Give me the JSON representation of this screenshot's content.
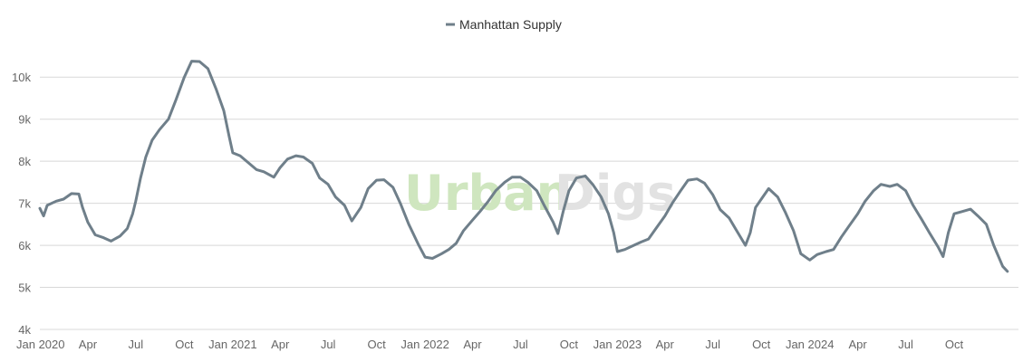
{
  "chart_data": {
    "type": "line",
    "legend": {
      "position": "top-center"
    },
    "watermark": {
      "part1": "Urban",
      "part2": "Digs",
      "color1": "#cfe6bf",
      "color2": "#e2e2e2"
    },
    "grid": true,
    "ylim": [
      4000,
      10500
    ],
    "y_ticks": [
      {
        "value": 4000,
        "label": "4k"
      },
      {
        "value": 5000,
        "label": "5k"
      },
      {
        "value": 6000,
        "label": "6k"
      },
      {
        "value": 7000,
        "label": "7k"
      },
      {
        "value": 8000,
        "label": "8k"
      },
      {
        "value": 9000,
        "label": "9k"
      },
      {
        "value": 10000,
        "label": "10k"
      }
    ],
    "x_range": [
      "2020-01-01",
      "2025-01-31"
    ],
    "x_ticks": [
      {
        "date": "2020-01-01",
        "label": "Jan 2020"
      },
      {
        "date": "2020-04-01",
        "label": "Apr"
      },
      {
        "date": "2020-07-01",
        "label": "Jul"
      },
      {
        "date": "2020-10-01",
        "label": "Oct"
      },
      {
        "date": "2021-01-01",
        "label": "Jan 2021"
      },
      {
        "date": "2021-04-01",
        "label": "Apr"
      },
      {
        "date": "2021-07-01",
        "label": "Jul"
      },
      {
        "date": "2021-10-01",
        "label": "Oct"
      },
      {
        "date": "2022-01-01",
        "label": "Jan 2022"
      },
      {
        "date": "2022-04-01",
        "label": "Apr"
      },
      {
        "date": "2022-07-01",
        "label": "Jul"
      },
      {
        "date": "2022-10-01",
        "label": "Oct"
      },
      {
        "date": "2023-01-01",
        "label": "Jan 2023"
      },
      {
        "date": "2023-04-01",
        "label": "Apr"
      },
      {
        "date": "2023-07-01",
        "label": "Jul"
      },
      {
        "date": "2023-10-01",
        "label": "Oct"
      },
      {
        "date": "2024-01-01",
        "label": "Jan 2024"
      },
      {
        "date": "2024-04-01",
        "label": "Apr"
      },
      {
        "date": "2024-07-01",
        "label": "Jul"
      },
      {
        "date": "2024-10-01",
        "label": "Oct"
      }
    ],
    "series": [
      {
        "name": "Manhattan Supply",
        "color": "#6f7f8a",
        "points": [
          [
            "2020-01-01",
            6880
          ],
          [
            "2020-01-08",
            6700
          ],
          [
            "2020-01-15",
            6950
          ],
          [
            "2020-02-01",
            7050
          ],
          [
            "2020-02-15",
            7100
          ],
          [
            "2020-03-01",
            7230
          ],
          [
            "2020-03-15",
            7220
          ],
          [
            "2020-03-22",
            6900
          ],
          [
            "2020-04-01",
            6550
          ],
          [
            "2020-04-15",
            6250
          ],
          [
            "2020-05-01",
            6180
          ],
          [
            "2020-05-15",
            6100
          ],
          [
            "2020-06-01",
            6220
          ],
          [
            "2020-06-15",
            6400
          ],
          [
            "2020-06-25",
            6750
          ],
          [
            "2020-07-01",
            7050
          ],
          [
            "2020-07-10",
            7600
          ],
          [
            "2020-07-20",
            8100
          ],
          [
            "2020-08-01",
            8500
          ],
          [
            "2020-08-15",
            8750
          ],
          [
            "2020-09-01",
            9000
          ],
          [
            "2020-09-15",
            9450
          ],
          [
            "2020-10-01",
            10000
          ],
          [
            "2020-10-15",
            10380
          ],
          [
            "2020-10-30",
            10370
          ],
          [
            "2020-11-15",
            10200
          ],
          [
            "2020-12-01",
            9700
          ],
          [
            "2020-12-15",
            9200
          ],
          [
            "2020-12-25",
            8600
          ],
          [
            "2021-01-01",
            8200
          ],
          [
            "2021-01-15",
            8130
          ],
          [
            "2021-02-01",
            7950
          ],
          [
            "2021-02-15",
            7800
          ],
          [
            "2021-03-01",
            7750
          ],
          [
            "2021-03-20",
            7620
          ],
          [
            "2021-04-01",
            7850
          ],
          [
            "2021-04-15",
            8050
          ],
          [
            "2021-05-01",
            8130
          ],
          [
            "2021-05-15",
            8100
          ],
          [
            "2021-06-01",
            7950
          ],
          [
            "2021-06-15",
            7600
          ],
          [
            "2021-07-01",
            7450
          ],
          [
            "2021-07-15",
            7150
          ],
          [
            "2021-08-01",
            6950
          ],
          [
            "2021-08-15",
            6580
          ],
          [
            "2021-09-01",
            6900
          ],
          [
            "2021-09-15",
            7350
          ],
          [
            "2021-10-01",
            7550
          ],
          [
            "2021-10-15",
            7560
          ],
          [
            "2021-11-01",
            7380
          ],
          [
            "2021-11-15",
            7000
          ],
          [
            "2021-12-01",
            6500
          ],
          [
            "2021-12-20",
            6000
          ],
          [
            "2022-01-01",
            5720
          ],
          [
            "2022-01-15",
            5690
          ],
          [
            "2022-02-01",
            5800
          ],
          [
            "2022-02-15",
            5900
          ],
          [
            "2022-03-01",
            6050
          ],
          [
            "2022-03-15",
            6350
          ],
          [
            "2022-04-01",
            6600
          ],
          [
            "2022-04-15",
            6800
          ],
          [
            "2022-05-01",
            7050
          ],
          [
            "2022-05-15",
            7300
          ],
          [
            "2022-06-01",
            7500
          ],
          [
            "2022-06-15",
            7620
          ],
          [
            "2022-07-01",
            7620
          ],
          [
            "2022-07-15",
            7500
          ],
          [
            "2022-08-01",
            7300
          ],
          [
            "2022-08-15",
            6950
          ],
          [
            "2022-09-01",
            6550
          ],
          [
            "2022-09-10",
            6280
          ],
          [
            "2022-09-20",
            6800
          ],
          [
            "2022-10-01",
            7300
          ],
          [
            "2022-10-15",
            7600
          ],
          [
            "2022-11-01",
            7650
          ],
          [
            "2022-11-15",
            7450
          ],
          [
            "2022-12-01",
            7150
          ],
          [
            "2022-12-15",
            6750
          ],
          [
            "2022-12-25",
            6300
          ],
          [
            "2023-01-01",
            5850
          ],
          [
            "2023-01-15",
            5900
          ],
          [
            "2023-02-01",
            6000
          ],
          [
            "2023-02-15",
            6080
          ],
          [
            "2023-03-01",
            6150
          ],
          [
            "2023-03-15",
            6400
          ],
          [
            "2023-04-01",
            6700
          ],
          [
            "2023-04-15",
            7000
          ],
          [
            "2023-05-01",
            7300
          ],
          [
            "2023-05-15",
            7550
          ],
          [
            "2023-06-01",
            7580
          ],
          [
            "2023-06-15",
            7480
          ],
          [
            "2023-07-01",
            7200
          ],
          [
            "2023-07-15",
            6850
          ],
          [
            "2023-08-01",
            6650
          ],
          [
            "2023-08-15",
            6350
          ],
          [
            "2023-09-01",
            6000
          ],
          [
            "2023-09-10",
            6300
          ],
          [
            "2023-09-20",
            6900
          ],
          [
            "2023-10-01",
            7100
          ],
          [
            "2023-10-15",
            7350
          ],
          [
            "2023-11-01",
            7150
          ],
          [
            "2023-11-15",
            6800
          ],
          [
            "2023-12-01",
            6350
          ],
          [
            "2023-12-15",
            5800
          ],
          [
            "2024-01-01",
            5650
          ],
          [
            "2024-01-15",
            5780
          ],
          [
            "2024-02-01",
            5850
          ],
          [
            "2024-02-15",
            5900
          ],
          [
            "2024-03-01",
            6200
          ],
          [
            "2024-03-15",
            6450
          ],
          [
            "2024-04-01",
            6750
          ],
          [
            "2024-04-15",
            7050
          ],
          [
            "2024-05-01",
            7300
          ],
          [
            "2024-05-15",
            7450
          ],
          [
            "2024-06-01",
            7400
          ],
          [
            "2024-06-15",
            7450
          ],
          [
            "2024-07-01",
            7300
          ],
          [
            "2024-07-15",
            6950
          ],
          [
            "2024-08-01",
            6600
          ],
          [
            "2024-08-15",
            6300
          ],
          [
            "2024-09-01",
            5950
          ],
          [
            "2024-09-10",
            5730
          ],
          [
            "2024-09-20",
            6300
          ],
          [
            "2024-10-01",
            6750
          ],
          [
            "2024-10-15",
            6800
          ],
          [
            "2024-11-01",
            6860
          ],
          [
            "2024-11-15",
            6700
          ],
          [
            "2024-12-01",
            6500
          ],
          [
            "2024-12-15",
            6000
          ],
          [
            "2025-01-01",
            5500
          ],
          [
            "2025-01-10",
            5380
          ]
        ]
      }
    ]
  }
}
